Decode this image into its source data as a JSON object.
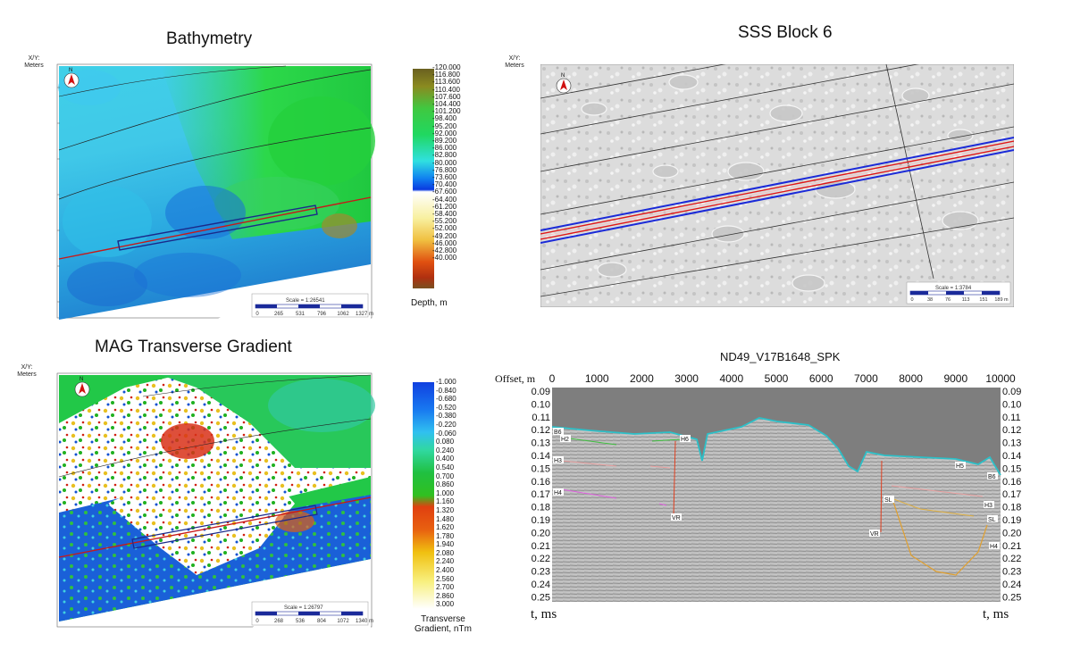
{
  "bathymetry": {
    "title": "Bathymetry",
    "xy_label": "X/Y:\nMeters",
    "north": "N",
    "scale_text": "Scale = 1:26541",
    "scale_ticks": [
      "0",
      "265",
      "531",
      "796",
      "1062",
      "1327 m"
    ],
    "colorbar_labels": [
      "-120.000",
      "-116.800",
      "-113.600",
      "-110.400",
      "-107.600",
      "-104.400",
      "-101.200",
      "-98.400",
      "-95.200",
      "-92.000",
      "-89.200",
      "-86.000",
      "-82.800",
      "-80.000",
      "-76.800",
      "-73.600",
      "-70.400",
      "-67.600",
      "-64.400",
      "-61.200",
      "-58.400",
      "-55.200",
      "-52.000",
      "-49.200",
      "-46.000",
      "-42.800",
      "-40.000"
    ],
    "colorbar_title": "Depth, m",
    "colors": {
      "deep": "#7a6a1e",
      "mid": "#1ec83a",
      "cyan": "#3fe0e0",
      "blue": "#1060e0",
      "white": "#ffffff",
      "yellow": "#f0e080",
      "red": "#e03010",
      "brown": "#8a5a20"
    }
  },
  "sss": {
    "title": "SSS Block 6",
    "xy_label": "X/Y:\nMeters",
    "north": "N",
    "scale_text": "Scale = 1:3784",
    "scale_ticks": [
      "0",
      "38",
      "76",
      "113",
      "151",
      "189 m"
    ]
  },
  "mag": {
    "title": "MAG Transverse Gradient",
    "xy_label": "X/Y:\nMeters",
    "north": "N",
    "scale_text": "Scale = 1:26797",
    "scale_ticks": [
      "0",
      "268",
      "536",
      "804",
      "1072",
      "1340 m"
    ],
    "colorbar_labels": [
      "-1.000",
      "-0.840",
      "-0.680",
      "-0.520",
      "-0.380",
      "-0.220",
      "-0.060",
      "0.080",
      "0.240",
      "0.400",
      "0.540",
      "0.700",
      "0.860",
      "1.000",
      "1.160",
      "1.320",
      "1.480",
      "1.620",
      "1.780",
      "1.940",
      "2.080",
      "2.240",
      "2.400",
      "2.560",
      "2.700",
      "2.860",
      "3.000"
    ],
    "colorbar_title": "Transverse\nGradient, nTm"
  },
  "seismic": {
    "title": "ND49_V17B1648_SPK",
    "offset_label": "Offset, m",
    "x_ticks": [
      "0",
      "1000",
      "2000",
      "3000",
      "4000",
      "5000",
      "6000",
      "7000",
      "8000",
      "9000",
      "10000"
    ],
    "y_ticks": [
      "0.09",
      "0.10",
      "0.11",
      "0.12",
      "0.13",
      "0.14",
      "0.15",
      "0.16",
      "0.17",
      "0.18",
      "0.19",
      "0.20",
      "0.21",
      "0.22",
      "0.23",
      "0.24",
      "0.25"
    ],
    "y_label_left": "t, ms",
    "y_label_right": "t, ms",
    "horizon_labels": [
      "B6",
      "H2",
      "H3",
      "H4",
      "H6",
      "VR",
      "H5",
      "B6",
      "H3",
      "SL",
      "SL",
      "VR",
      "H4"
    ]
  }
}
